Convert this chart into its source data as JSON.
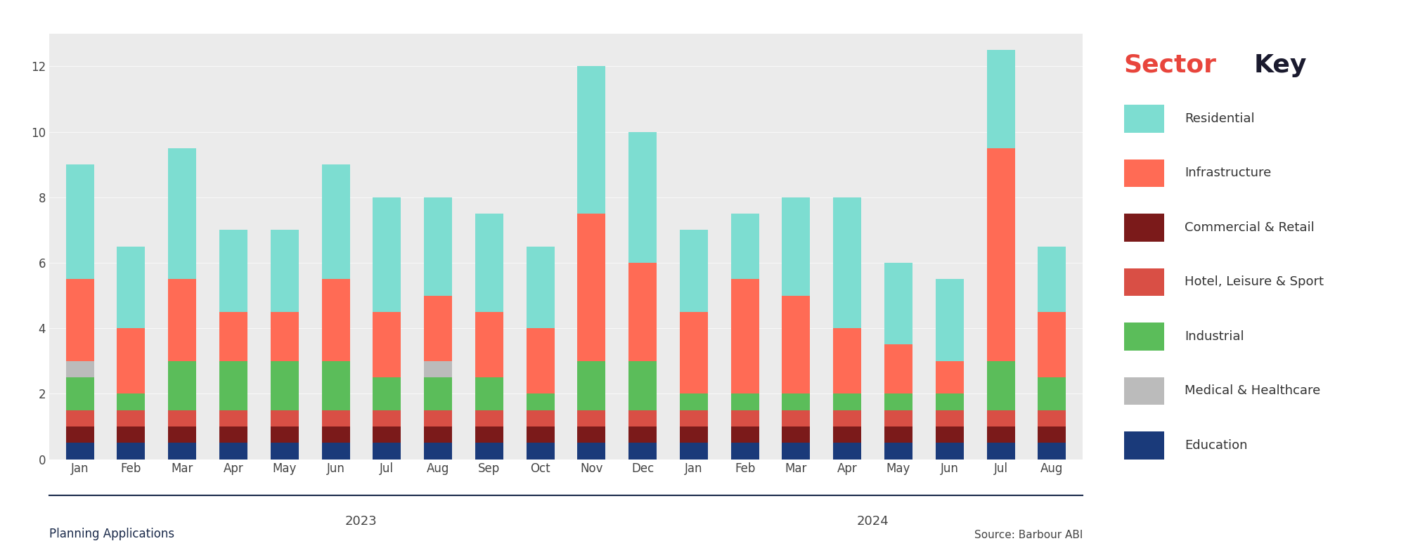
{
  "months": [
    "Jan",
    "Feb",
    "Mar",
    "Apr",
    "May",
    "Jun",
    "Jul",
    "Aug",
    "Sep",
    "Oct",
    "Nov",
    "Dec",
    "Jan",
    "Feb",
    "Mar",
    "Apr",
    "May",
    "Jun",
    "Jul",
    "Aug"
  ],
  "colors": {
    "Residential": "#7DDDD1",
    "Infrastructure": "#FF6B55",
    "Commercial & Retail": "#7B1A1A",
    "Hotel, Leisure & Sport": "#D94F45",
    "Industrial": "#5BBD5A",
    "Medical & Healthcare": "#BBBBBB",
    "Education": "#1A3A7A"
  },
  "data": {
    "Education": [
      0.5,
      0.5,
      0.5,
      0.5,
      0.5,
      0.5,
      0.5,
      0.5,
      0.5,
      0.5,
      0.5,
      0.5,
      0.5,
      0.5,
      0.5,
      0.5,
      0.5,
      0.5,
      0.5,
      0.5
    ],
    "Commercial & Retail": [
      0.5,
      0.5,
      0.5,
      0.5,
      0.5,
      0.5,
      0.5,
      0.5,
      0.5,
      0.5,
      0.5,
      0.5,
      0.5,
      0.5,
      0.5,
      0.5,
      0.5,
      0.5,
      0.5,
      0.5
    ],
    "Hotel, Leisure & Sport": [
      0.5,
      0.5,
      0.5,
      0.5,
      0.5,
      0.5,
      0.5,
      0.5,
      0.5,
      0.5,
      0.5,
      0.5,
      0.5,
      0.5,
      0.5,
      0.5,
      0.5,
      0.5,
      0.5,
      0.5
    ],
    "Industrial": [
      1.0,
      0.5,
      1.5,
      1.5,
      1.5,
      1.5,
      1.0,
      1.0,
      1.0,
      0.5,
      1.5,
      1.5,
      0.5,
      0.5,
      0.5,
      0.5,
      0.5,
      0.5,
      1.5,
      1.0
    ],
    "Medical & Healthcare": [
      0.5,
      0.0,
      0.0,
      0.0,
      0.0,
      0.0,
      0.0,
      0.5,
      0.0,
      0.0,
      0.0,
      0.0,
      0.0,
      0.0,
      0.0,
      0.0,
      0.0,
      0.0,
      0.0,
      0.0
    ],
    "Infrastructure": [
      2.5,
      2.0,
      2.5,
      1.5,
      1.5,
      2.5,
      2.0,
      2.0,
      2.0,
      2.0,
      4.5,
      3.0,
      2.5,
      3.5,
      3.0,
      2.0,
      1.5,
      1.0,
      6.5,
      2.0
    ],
    "Residential": [
      3.5,
      2.5,
      4.0,
      2.5,
      2.5,
      3.5,
      3.5,
      3.0,
      3.0,
      2.5,
      4.5,
      4.0,
      2.5,
      2.0,
      3.0,
      4.0,
      2.5,
      2.5,
      3.0,
      2.0
    ]
  },
  "ylim": [
    0,
    13
  ],
  "yticks": [
    0,
    2,
    4,
    6,
    8,
    10,
    12
  ],
  "source_text": "Source: Barbour ABI",
  "ylabel_text": "Planning Applications",
  "chart_bg_color": "#EBEBEB",
  "outer_bg_color": "#FFFFFF",
  "legend_bg_color": "#EBEBEB",
  "bar_width": 0.55
}
